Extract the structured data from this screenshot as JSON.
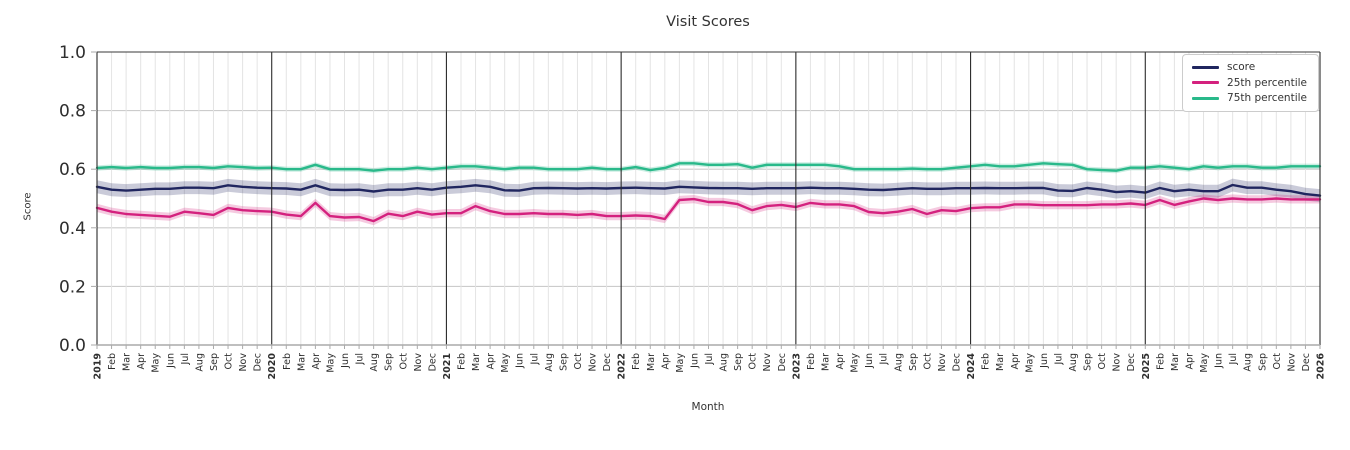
{
  "chart": {
    "title": "Visit Scores",
    "xlabel": "Month",
    "ylabel": "Score"
  },
  "chart_data": {
    "type": "line",
    "title": "Visit Scores",
    "xlabel": "Month",
    "ylabel": "Score",
    "ylim": [
      0.0,
      1.0
    ],
    "yticks": [
      "0.0",
      "0.2",
      "0.4",
      "0.6",
      "0.8",
      "1.0"
    ],
    "grid": true,
    "legend_position": "upper right",
    "year_boundaries": [
      "2019",
      "2020",
      "2021",
      "2022",
      "2023",
      "2024",
      "2025",
      "2026"
    ],
    "categories": [
      "2019",
      "Feb",
      "Mar",
      "Apr",
      "May",
      "Jun",
      "Jul",
      "Aug",
      "Sep",
      "Oct",
      "Nov",
      "Dec",
      "2020",
      "Feb",
      "Mar",
      "Apr",
      "May",
      "Jun",
      "Jul",
      "Aug",
      "Sep",
      "Oct",
      "Nov",
      "Dec",
      "2021",
      "Feb",
      "Mar",
      "Apr",
      "May",
      "Jun",
      "Jul",
      "Aug",
      "Sep",
      "Oct",
      "Nov",
      "Dec",
      "2022",
      "Feb",
      "Mar",
      "Apr",
      "May",
      "Jun",
      "Jul",
      "Aug",
      "Sep",
      "Oct",
      "Nov",
      "Dec",
      "2023",
      "Feb",
      "Mar",
      "Apr",
      "May",
      "Jun",
      "Jul",
      "Aug",
      "Sep",
      "Oct",
      "Nov",
      "Dec",
      "2024",
      "Feb",
      "Mar",
      "Apr",
      "May",
      "Jun",
      "Jul",
      "Aug",
      "Sep",
      "Oct",
      "Nov",
      "Dec",
      "2025",
      "Feb",
      "Mar",
      "Apr",
      "May",
      "Jun",
      "Jul",
      "Aug",
      "Sep",
      "Oct",
      "Nov",
      "Dec",
      "2026"
    ],
    "series": [
      {
        "name": "score",
        "color": "#20265f",
        "band_halfwidth": 0.022,
        "values": [
          0.54,
          0.53,
          0.527,
          0.53,
          0.533,
          0.533,
          0.537,
          0.537,
          0.535,
          0.545,
          0.54,
          0.537,
          0.535,
          0.534,
          0.53,
          0.545,
          0.53,
          0.529,
          0.53,
          0.524,
          0.53,
          0.53,
          0.535,
          0.53,
          0.537,
          0.54,
          0.545,
          0.54,
          0.528,
          0.527,
          0.535,
          0.536,
          0.535,
          0.534,
          0.535,
          0.534,
          0.536,
          0.537,
          0.535,
          0.534,
          0.54,
          0.538,
          0.536,
          0.535,
          0.535,
          0.533,
          0.535,
          0.535,
          0.535,
          0.537,
          0.535,
          0.535,
          0.533,
          0.53,
          0.529,
          0.532,
          0.535,
          0.533,
          0.533,
          0.535,
          0.535,
          0.536,
          0.535,
          0.535,
          0.536,
          0.536,
          0.527,
          0.526,
          0.536,
          0.53,
          0.522,
          0.525,
          0.52,
          0.536,
          0.525,
          0.53,
          0.525,
          0.525,
          0.546,
          0.537,
          0.537,
          0.53,
          0.525,
          0.515,
          0.51
        ]
      },
      {
        "name": "25th percentile",
        "color": "#d4217e",
        "band_halfwidth": 0.014,
        "values": [
          0.468,
          0.455,
          0.447,
          0.444,
          0.441,
          0.438,
          0.455,
          0.45,
          0.444,
          0.468,
          0.46,
          0.457,
          0.455,
          0.445,
          0.44,
          0.485,
          0.44,
          0.435,
          0.437,
          0.423,
          0.448,
          0.44,
          0.455,
          0.445,
          0.45,
          0.45,
          0.474,
          0.457,
          0.447,
          0.447,
          0.45,
          0.447,
          0.447,
          0.444,
          0.447,
          0.44,
          0.44,
          0.442,
          0.44,
          0.43,
          0.495,
          0.498,
          0.488,
          0.488,
          0.481,
          0.46,
          0.474,
          0.478,
          0.471,
          0.485,
          0.48,
          0.48,
          0.474,
          0.454,
          0.45,
          0.455,
          0.464,
          0.447,
          0.46,
          0.457,
          0.467,
          0.47,
          0.47,
          0.48,
          0.48,
          0.477,
          0.477,
          0.477,
          0.477,
          0.48,
          0.48,
          0.483,
          0.478,
          0.495,
          0.478,
          0.49,
          0.5,
          0.495,
          0.5,
          0.497,
          0.497,
          0.5,
          0.497,
          0.497,
          0.497
        ]
      },
      {
        "name": "75th percentile",
        "color": "#29b98a",
        "band_halfwidth": 0.009,
        "values": [
          0.604,
          0.607,
          0.604,
          0.607,
          0.604,
          0.604,
          0.607,
          0.607,
          0.604,
          0.61,
          0.607,
          0.604,
          0.605,
          0.6,
          0.6,
          0.615,
          0.6,
          0.6,
          0.6,
          0.595,
          0.6,
          0.6,
          0.605,
          0.6,
          0.605,
          0.61,
          0.61,
          0.605,
          0.6,
          0.605,
          0.605,
          0.6,
          0.6,
          0.6,
          0.605,
          0.6,
          0.6,
          0.607,
          0.597,
          0.604,
          0.62,
          0.62,
          0.615,
          0.615,
          0.617,
          0.605,
          0.615,
          0.615,
          0.615,
          0.615,
          0.615,
          0.61,
          0.6,
          0.6,
          0.6,
          0.6,
          0.602,
          0.6,
          0.6,
          0.605,
          0.61,
          0.615,
          0.61,
          0.61,
          0.615,
          0.62,
          0.617,
          0.615,
          0.6,
          0.597,
          0.595,
          0.605,
          0.605,
          0.61,
          0.605,
          0.6,
          0.61,
          0.605,
          0.61,
          0.61,
          0.605,
          0.605,
          0.61,
          0.61,
          0.61
        ]
      }
    ]
  },
  "colors": {
    "grid_minor": "#e4e4e4",
    "grid_major": "#cccccc",
    "year_line": "#2b2b2b",
    "tick_text": "#2e2e2e",
    "spine": "#aaaaaa"
  }
}
